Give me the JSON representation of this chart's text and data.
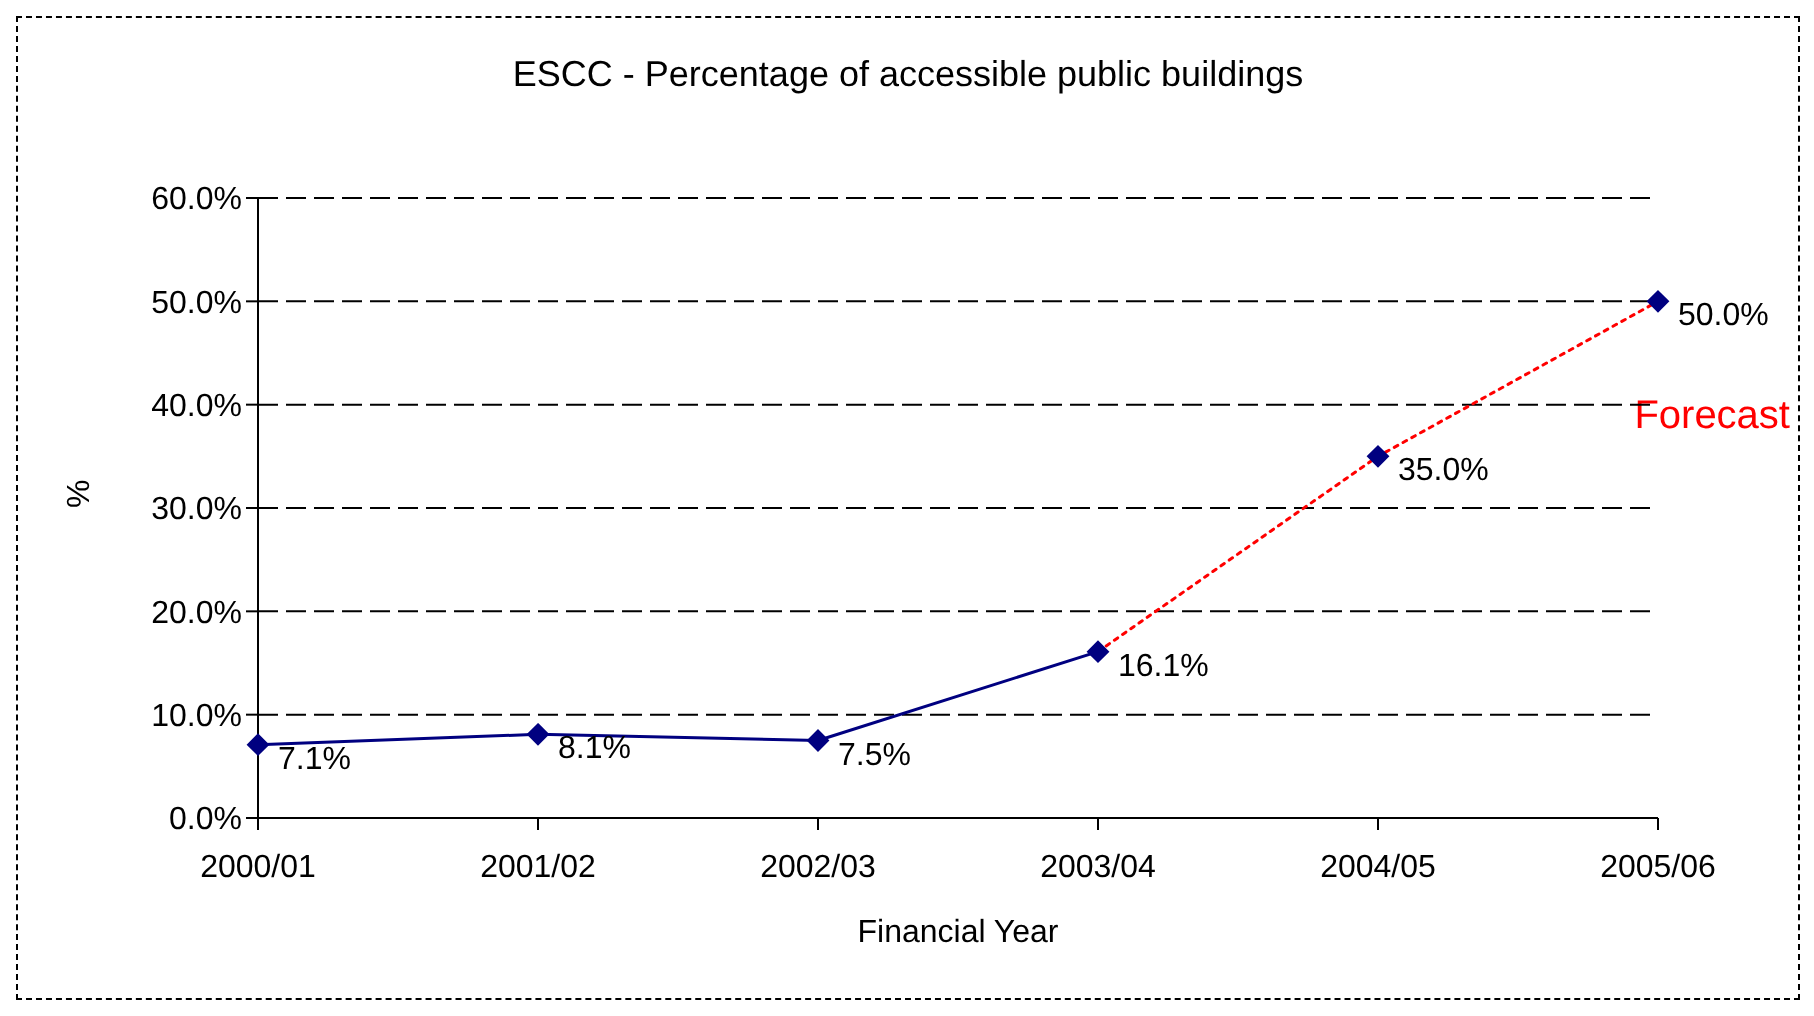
{
  "chart_data": {
    "type": "line",
    "title": "ESCC - Percentage of accessible public buildings",
    "xlabel": "Financial Year",
    "ylabel": "%",
    "categories": [
      "2000/01",
      "2001/02",
      "2002/03",
      "2003/04",
      "2004/05",
      "2005/06"
    ],
    "series": [
      {
        "color": "#000080",
        "line_style": "solid",
        "marker": "diamond",
        "values": [
          7.1,
          8.1,
          7.5,
          16.1,
          null,
          null
        ],
        "value_labels": [
          "7.1%",
          "8.1%",
          "7.5%",
          "16.1%",
          null,
          null
        ]
      },
      {
        "color": "#ff0000",
        "line_style": "dotted",
        "marker": "none",
        "values": [
          null,
          null,
          null,
          16.1,
          35.0,
          50.0
        ]
      },
      {
        "type": "scatter",
        "color": "#000080",
        "marker": "diamond",
        "values": [
          null,
          null,
          null,
          null,
          35.0,
          50.0
        ],
        "value_labels": [
          null,
          null,
          null,
          null,
          "35.0%",
          "50.0%"
        ]
      }
    ],
    "ylim": [
      0,
      60
    ],
    "yticks": [
      {
        "value": 0,
        "label": "0.0%"
      },
      {
        "value": 10,
        "label": "10.0%"
      },
      {
        "value": 20,
        "label": "20.0%"
      },
      {
        "value": 30,
        "label": "30.0%"
      },
      {
        "value": 40,
        "label": "40.0%"
      },
      {
        "value": 50,
        "label": "50.0%"
      },
      {
        "value": 60,
        "label": "60.0%"
      }
    ],
    "grid": "y",
    "annotations": [
      "Forecast"
    ]
  }
}
